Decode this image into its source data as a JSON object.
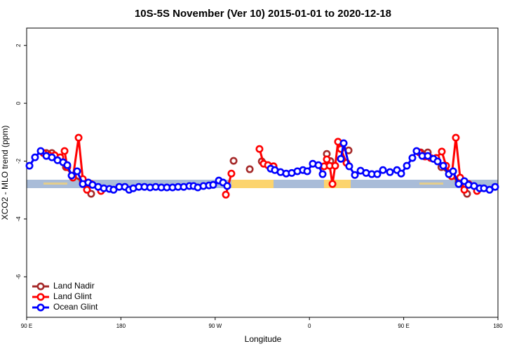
{
  "chart_data": {
    "type": "line",
    "title": "10S-5S November (Ver 10)   2015-01-01 to 2020-12-18",
    "xlabel": "Longitude",
    "ylabel": "XCO2 - MLO trend (ppm)",
    "xlim": [
      90,
      540
    ],
    "xticks": [
      {
        "value": 90,
        "label": "90 E"
      },
      {
        "value": 180,
        "label": "180"
      },
      {
        "value": 270,
        "label": "90 W"
      },
      {
        "value": 360,
        "label": "0"
      },
      {
        "value": 450,
        "label": "90 E"
      },
      {
        "value": 540,
        "label": "180"
      }
    ],
    "ylim": [
      -7.4,
      2.6
    ],
    "yticks": [
      2,
      0,
      -2,
      -4,
      -6
    ],
    "grid": false,
    "legend": "bottom-left",
    "series": [
      {
        "name": "Land Nadir",
        "color": "#a52a2a",
        "x": [
          108.8,
          114.1,
          127.5,
          134.2,
          143.6,
          147.6,
          151.6,
          null,
          287.6,
          null,
          303,
          null,
          314.5,
          320.4,
          325.7,
          null,
          376.6,
          380,
          null,
          397.4,
          null,
          466.3,
          473,
          486,
          502.5,
          507.9,
          510.5
        ],
        "values": [
          -1.72,
          -1.72,
          -2.21,
          -2.52,
          -2.7,
          -2.84,
          -3.13,
          null,
          -1.99,
          null,
          -2.28,
          null,
          -2.01,
          -2.14,
          -2.18,
          null,
          -1.75,
          -2.0,
          null,
          -1.63,
          null,
          -1.7,
          -1.7,
          -2.21,
          -2.72,
          -2.86,
          -3.13
        ]
      },
      {
        "name": "Land Glint",
        "color": "#ff0000",
        "x": [
          106,
          111.4,
          116.8,
          122.1,
          126.2,
          128.8,
          134.2,
          139.6,
          143.6,
          147.6,
          151.6,
          161,
          null,
          280.2,
          285.5,
          null,
          312.3,
          316.3,
          320.4,
          325.7,
          null,
          374,
          376.6,
          379.3,
          382,
          384.6,
          387.3,
          390,
          395.4,
          null,
          465,
          470.4,
          475.7,
          481.1,
          486.4,
          490.5,
          495.8,
          499.8,
          503.9,
          507.9,
          511.9,
          520
        ],
        "values": [
          -1.72,
          -1.8,
          -1.8,
          -1.87,
          -1.65,
          -2.21,
          -2.57,
          -1.19,
          -2.62,
          -2.99,
          -2.79,
          -3.03,
          null,
          -3.16,
          -2.43,
          null,
          -1.58,
          -2.09,
          -2.14,
          -2.18,
          null,
          -2.18,
          -1.94,
          -2.16,
          -2.79,
          -2.16,
          -1.33,
          -1.58,
          -2.06,
          null,
          -1.7,
          -1.84,
          -1.89,
          -1.89,
          -1.67,
          -2.16,
          -2.52,
          -1.19,
          -2.57,
          -2.99,
          -2.79,
          -3.03
        ]
      },
      {
        "name": "Ocean Glint",
        "color": "#0000ff",
        "x": [
          92.7,
          98,
          103.4,
          108.8,
          114.1,
          119.5,
          124.8,
          128.8,
          132.9,
          138.2,
          143.6,
          148.9,
          152.9,
          158.3,
          163.7,
          169,
          173,
          178.4,
          183.8,
          187.8,
          191.8,
          197.1,
          202.5,
          207.9,
          213.2,
          218.6,
          223.9,
          229.3,
          234.6,
          240,
          245.4,
          249.4,
          253.4,
          258.8,
          264.1,
          268.1,
          273.5,
          277.5,
          281.5,
          null,
          323,
          327,
          332.4,
          337.8,
          343.1,
          348.5,
          353.8,
          357.9,
          363.2,
          368.6,
          372.6,
          null,
          390,
          392.7,
          398,
          403.4,
          408.8,
          414.1,
          419.5,
          424.8,
          430.2,
          436.9,
          443.6,
          447.6,
          453,
          458.3,
          462.3,
          467.7,
          473,
          478.4,
          482.4,
          487.8,
          493.1,
          497.2,
          502.5,
          507.9,
          511.9,
          517.2,
          522.6,
          526.6,
          532,
          537.3
        ],
        "values": [
          -2.16,
          -1.87,
          -1.65,
          -1.82,
          -1.87,
          -1.97,
          -2.04,
          -2.14,
          -2.5,
          -2.35,
          -2.79,
          -2.74,
          -2.82,
          -2.89,
          -2.94,
          -2.96,
          -2.99,
          -2.89,
          -2.89,
          -2.99,
          -2.94,
          -2.89,
          -2.89,
          -2.91,
          -2.89,
          -2.91,
          -2.91,
          -2.91,
          -2.89,
          -2.89,
          -2.86,
          -2.86,
          -2.91,
          -2.86,
          -2.84,
          -2.82,
          -2.67,
          -2.74,
          -2.86,
          null,
          -2.26,
          -2.31,
          -2.38,
          -2.43,
          -2.41,
          -2.35,
          -2.31,
          -2.35,
          -2.09,
          -2.14,
          -2.45,
          null,
          -1.92,
          -1.38,
          -2.18,
          -2.48,
          -2.33,
          -2.41,
          -2.45,
          -2.45,
          -2.31,
          -2.38,
          -2.31,
          -2.43,
          -2.16,
          -1.89,
          -1.65,
          -1.82,
          -1.82,
          -1.92,
          -2.01,
          -2.16,
          -2.45,
          -2.35,
          -2.79,
          -2.69,
          -2.82,
          -2.86,
          -2.94,
          -2.94,
          -2.99,
          -2.89
        ]
      }
    ]
  }
}
